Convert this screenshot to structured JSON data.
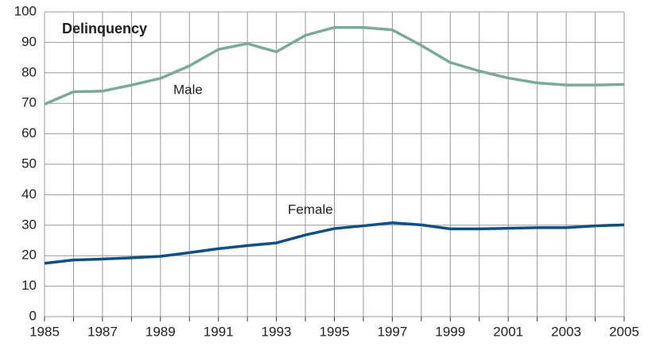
{
  "chart_data": {
    "type": "line",
    "title": "Delinquency",
    "x": [
      1985,
      1986,
      1987,
      1988,
      1989,
      1990,
      1991,
      1992,
      1993,
      1994,
      1995,
      1996,
      1997,
      1998,
      1999,
      2000,
      2001,
      2002,
      2003,
      2004,
      2005
    ],
    "series": [
      {
        "name": "Male",
        "color": "#7aab9a",
        "values": [
          69.7,
          73.8,
          74,
          76,
          78.2,
          82.3,
          87.7,
          89.6,
          86.9,
          92.3,
          94.9,
          94.9,
          94.1,
          89,
          83.4,
          80.6,
          78.3,
          76.7,
          76,
          76,
          76.2
        ]
      },
      {
        "name": "Female",
        "color": "#0b4f8c",
        "values": [
          17.5,
          18.6,
          18.9,
          19.3,
          19.8,
          21,
          22.3,
          23.3,
          24.2,
          26.8,
          28.9,
          29.8,
          30.8,
          30.1,
          28.8,
          28.8,
          29,
          29.2,
          29.2,
          29.8,
          30.1
        ]
      }
    ],
    "xlim": [
      1985,
      2005
    ],
    "xticks": [
      1985,
      1987,
      1989,
      1991,
      1993,
      1995,
      1997,
      1999,
      2001,
      2003,
      2005
    ],
    "ylim": [
      0,
      100
    ],
    "yticks": [
      0,
      10,
      20,
      30,
      40,
      50,
      60,
      70,
      80,
      90,
      100
    ],
    "grid": true
  }
}
